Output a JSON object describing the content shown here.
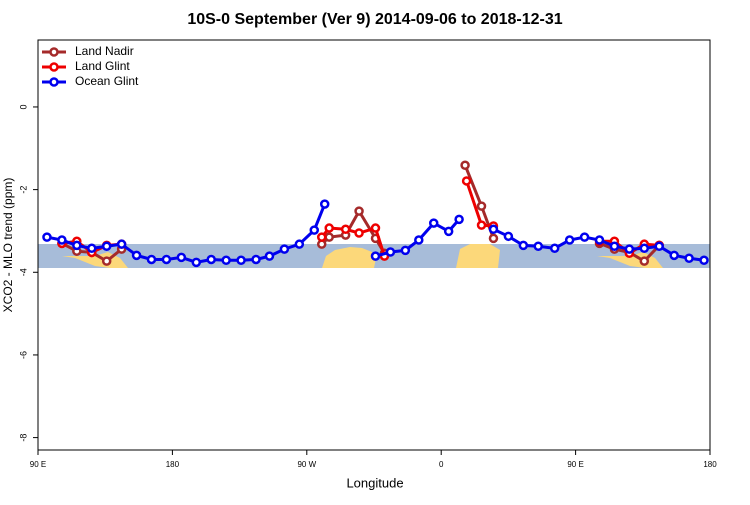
{
  "chart_data": {
    "type": "line",
    "title": "10S-0 September (Ver 9)   2014-09-06 to 2018-12-31",
    "x_label": "Longitude",
    "y_label": "XCO2 - MLO trend (ppm)",
    "xlim": [
      90,
      540
    ],
    "ylim": [
      -8.3,
      1.62
    ],
    "xticks": [
      {
        "value": 90,
        "label": "90 E"
      },
      180,
      {
        "value": 270,
        "label": "90 W"
      },
      {
        "value": 360,
        "label": "0"
      },
      {
        "value": 450,
        "label": "90 E"
      },
      {
        "value": 540,
        "label": "180"
      }
    ],
    "yticks": [
      0,
      -2,
      -4,
      -6,
      -8
    ],
    "legend": "top-left",
    "series": [
      {
        "name": "Land Nadir",
        "color": "#a52a2a",
        "x": [
          106,
          116,
          126,
          136,
          146,
          213,
          280,
          285,
          296,
          305,
          316,
          322,
          349,
          376,
          387,
          395,
          430,
          466,
          476,
          486,
          496,
          506
        ],
        "values": [
          -3.3,
          -3.49,
          -3.52,
          -3.73,
          -3.44,
          null,
          -3.32,
          -3.15,
          -3.1,
          -2.52,
          -3.18,
          -3.54,
          null,
          -1.41,
          -2.4,
          -3.18,
          null,
          -3.3,
          -3.44,
          -3.52,
          -3.73,
          -3.35
        ]
      },
      {
        "name": "Land Glint",
        "color": "#ee0000",
        "x": [
          106,
          116,
          126,
          136,
          146,
          213,
          280,
          285,
          296,
          305,
          316,
          322,
          349,
          377,
          387,
          395,
          430,
          466,
          476,
          486,
          496,
          506
        ],
        "values": [
          -3.3,
          -3.25,
          -3.52,
          -3.35,
          -3.32,
          null,
          -3.15,
          -2.93,
          -2.96,
          -3.05,
          -2.93,
          -3.61,
          null,
          -1.79,
          -2.86,
          -2.88,
          null,
          -3.25,
          -3.25,
          -3.54,
          -3.32,
          -3.35
        ]
      },
      {
        "name": "Ocean Glint",
        "color": "#0000ee",
        "x": [
          96,
          106,
          116,
          126,
          136,
          146,
          156,
          166,
          176,
          186,
          196,
          206,
          216,
          226,
          236,
          245,
          255,
          265,
          275,
          282,
          299,
          316,
          326,
          336,
          345,
          355,
          365,
          372,
          384,
          395,
          405,
          415,
          425,
          436,
          446,
          456,
          466,
          476,
          486,
          496,
          506,
          516,
          526,
          536
        ],
        "values": [
          -3.15,
          -3.22,
          -3.35,
          -3.42,
          -3.37,
          -3.32,
          -3.59,
          -3.69,
          -3.69,
          -3.64,
          -3.76,
          -3.69,
          -3.71,
          -3.71,
          -3.69,
          -3.61,
          -3.44,
          -3.32,
          -2.98,
          -2.35,
          null,
          -3.61,
          -3.51,
          -3.47,
          -3.22,
          -2.81,
          -3.01,
          -2.72,
          null,
          -2.96,
          -3.13,
          -3.35,
          -3.37,
          -3.42,
          -3.22,
          -3.15,
          -3.22,
          -3.37,
          -3.44,
          -3.42,
          -3.37,
          -3.59,
          -3.66,
          -3.71
        ]
      }
    ]
  }
}
